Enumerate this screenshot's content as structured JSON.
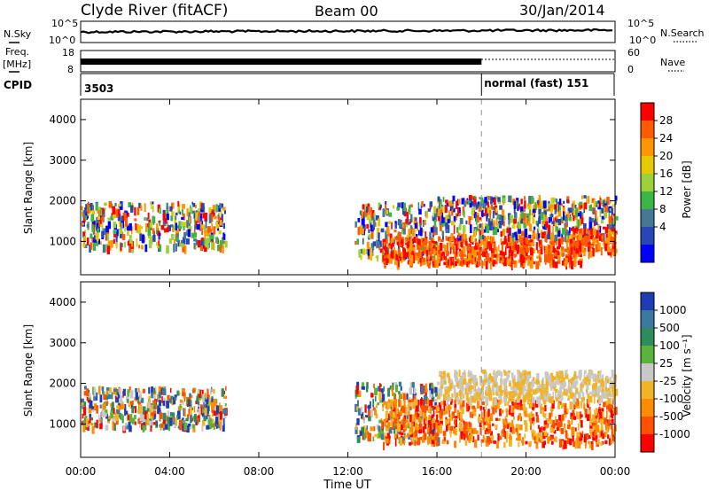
{
  "header": {
    "station": "Clyde River (fitACF)",
    "beam": "Beam 00",
    "date": "30/Jan/2014"
  },
  "status_panels": {
    "nsky": {
      "left_label": "N.Sky",
      "right_label": "N.Search",
      "left_ticks": [
        "10^5",
        "10^0"
      ],
      "right_ticks": [
        "10^5",
        "10^0"
      ]
    },
    "freq": {
      "left_label_top": "Freq.",
      "left_label_bottom": "[MHz]",
      "right_label": "Nave",
      "left_ticks": [
        "18",
        "8"
      ],
      "right_ticks": [
        "60",
        "0"
      ]
    },
    "cpid": {
      "label": "CPID",
      "segments": [
        {
          "text": "3503",
          "start_hour": 0
        },
        {
          "text": "normal (fast) 151",
          "start_hour": 18.0
        }
      ]
    }
  },
  "x_axis": {
    "label": "Time UT",
    "ticks": [
      "00:00",
      "04:00",
      "08:00",
      "12:00",
      "16:00",
      "20:00",
      "00:00"
    ],
    "tick_hours": [
      0,
      4,
      8,
      12,
      16,
      20,
      24
    ]
  },
  "chart_data": [
    {
      "type": "heatmap",
      "name": "power",
      "ylabel": "Slant Range [km]",
      "ylim": [
        180,
        4500
      ],
      "yticks": [
        "1000",
        "2000",
        "3000",
        "4000"
      ],
      "ytick_values": [
        1000,
        2000,
        3000,
        4000
      ],
      "xlim_hours": [
        0,
        24
      ],
      "colorbar": {
        "label": "Power [dB]",
        "ticks": [
          "28",
          "24",
          "20",
          "16",
          "12",
          "8",
          "4"
        ],
        "colors": [
          "#ff0000",
          "#ff5a00",
          "#ff9600",
          "#e6c800",
          "#9bd23c",
          "#3cb446",
          "#467896",
          "#2846b4",
          "#0000ff"
        ]
      },
      "echo_regions": [
        {
          "t": [
            0.0,
            6.5
          ],
          "r": [
            850,
            1950
          ],
          "level": "mixed"
        },
        {
          "t": [
            12.3,
            16.0
          ],
          "r": [
            600,
            1950
          ],
          "level": "mixed"
        },
        {
          "t": [
            13.5,
            22.5
          ],
          "r": [
            450,
            1100
          ],
          "level": "high"
        },
        {
          "t": [
            16.0,
            24.0
          ],
          "r": [
            1100,
            2100
          ],
          "level": "mixed"
        },
        {
          "t": [
            22.0,
            24.0
          ],
          "r": [
            700,
            1300
          ],
          "level": "high"
        }
      ]
    },
    {
      "type": "heatmap",
      "name": "velocity",
      "ylabel": "Slant Range [km]",
      "ylim": [
        180,
        4500
      ],
      "yticks": [
        "1000",
        "2000",
        "3000",
        "4000"
      ],
      "ytick_values": [
        1000,
        2000,
        3000,
        4000
      ],
      "xlim_hours": [
        0,
        24
      ],
      "colorbar": {
        "label": "Velocity [m s⁻¹]",
        "ticks": [
          "1000",
          "500",
          "100",
          "25",
          "-25",
          "-100",
          "-500",
          "-1000"
        ],
        "colors": [
          "#1e3cb4",
          "#3c78a0",
          "#2d8c5a",
          "#5ab43c",
          "#c8c8c8",
          "#f0b428",
          "#ff8c00",
          "#ff5000",
          "#ff0000"
        ]
      },
      "echo_regions": [
        {
          "t": [
            0.0,
            6.5
          ],
          "r": [
            900,
            1900
          ],
          "level": "mixed"
        },
        {
          "t": [
            12.3,
            16.0
          ],
          "r": [
            600,
            2000
          ],
          "level": "mixed"
        },
        {
          "t": [
            13.5,
            24.0
          ],
          "r": [
            500,
            1600
          ],
          "level": "negative"
        },
        {
          "t": [
            16.0,
            24.0
          ],
          "r": [
            1600,
            2300
          ],
          "level": "near-zero"
        }
      ]
    }
  ]
}
